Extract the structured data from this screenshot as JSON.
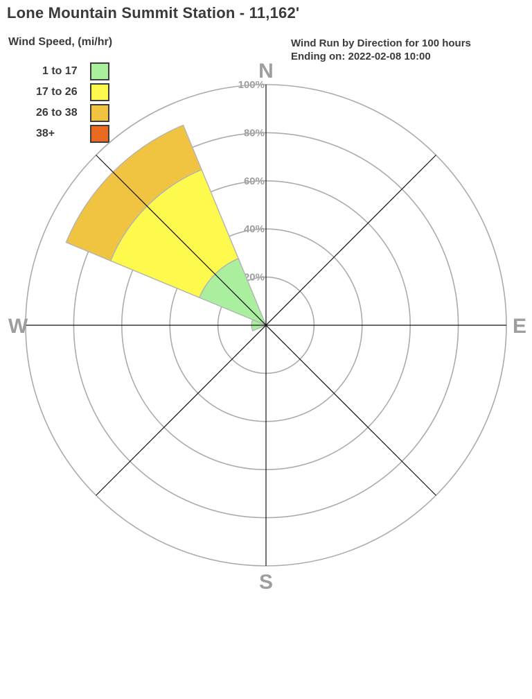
{
  "chart_data": {
    "type": "wind_rose",
    "title": "Lone Mountain Summit Station - 11,162'",
    "legend_title": "Wind Speed, (mi/hr)",
    "subtitle_lines": [
      "Wind Run by Direction for 100 hours",
      "Ending on: 2022-02-08 10:00"
    ],
    "speed_bins_mph": [
      {
        "label": "1 to 17",
        "color": "#a9ef9e"
      },
      {
        "label": "17 to 26",
        "color": "#fdfa4d"
      },
      {
        "label": "26 to 38",
        "color": "#f0c441"
      },
      {
        "label": "38+",
        "color": "#e8691f"
      }
    ],
    "ring_ticks": [
      {
        "pct": 20,
        "label": "20%"
      },
      {
        "pct": 40,
        "label": "40%"
      },
      {
        "pct": 60,
        "label": "60%"
      },
      {
        "pct": 80,
        "label": "80%"
      },
      {
        "pct": 100,
        "label": "100%"
      }
    ],
    "axis_max_pct": 100,
    "sector_width_deg": 45,
    "compass": [
      {
        "dir": "N"
      },
      {
        "dir": "E"
      },
      {
        "dir": "S"
      },
      {
        "dir": "W"
      }
    ],
    "wind_run_pct_by_direction": [
      {
        "direction": "NW",
        "bins_pct": [
          30,
          40,
          20,
          0
        ],
        "total_pct": 90
      },
      {
        "direction": "W",
        "bins_pct": [
          6,
          0,
          0,
          0
        ],
        "total_pct": 6
      }
    ],
    "colors": {
      "grid": "#ababab",
      "axis": "#111111",
      "gray_labels": "#9e9e9e",
      "text": "#3a3a3a",
      "background": "#ffffff"
    }
  }
}
